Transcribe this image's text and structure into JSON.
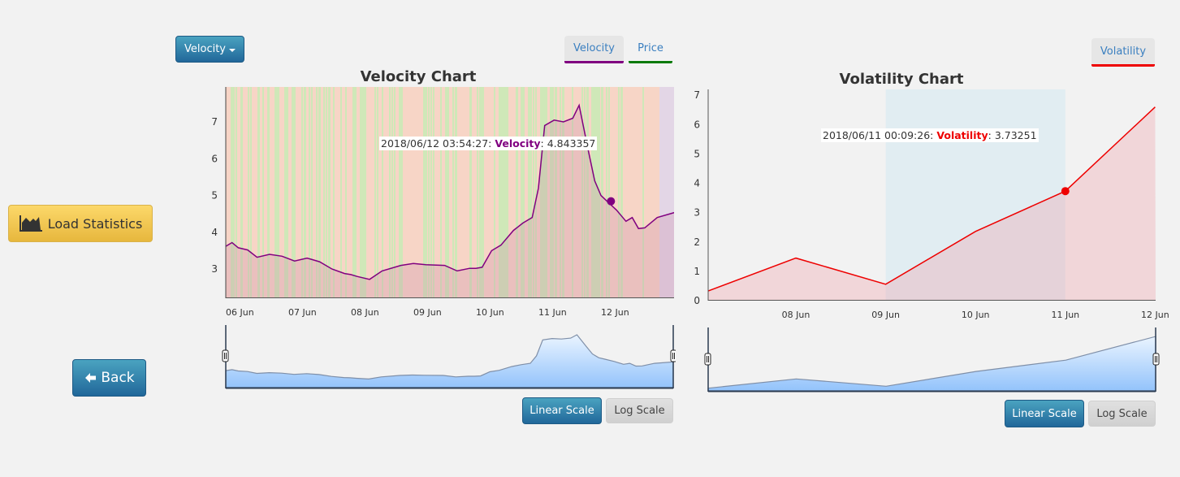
{
  "sidebar": {
    "load_statistics_label": "Load Statistics",
    "back_label": "Back"
  },
  "velocity_panel": {
    "dropdown_label": "Velocity",
    "legend": [
      {
        "label": "Velocity",
        "color": "#800080",
        "active": true
      },
      {
        "label": "Price",
        "color": "#0a7a0a",
        "active": false
      }
    ],
    "tooltip": {
      "timestamp": "2018/06/12 03:54:27:",
      "series": "Velocity",
      "sep": ":",
      "value": "4.843357"
    },
    "scale_buttons": {
      "linear": "Linear Scale",
      "log": "Log Scale"
    }
  },
  "volatility_panel": {
    "legend": [
      {
        "label": "Volatility",
        "color": "#ee0000",
        "active": true
      }
    ],
    "tooltip": {
      "timestamp": "2018/06/11 00:09:26:",
      "series": "Volatility",
      "sep": ":",
      "value": "3.73251"
    },
    "scale_buttons": {
      "linear": "Linear Scale",
      "log": "Log Scale"
    }
  },
  "chart_data": [
    {
      "type": "line",
      "title": "Velocity Chart",
      "xlabel": "",
      "ylabel": "",
      "x_ticks": [
        "06 Jun",
        "07 Jun",
        "08 Jun",
        "09 Jun",
        "10 Jun",
        "11 Jun",
        "12 Jun"
      ],
      "y_ticks": [
        3,
        4,
        5,
        6,
        7
      ],
      "xlim_days": [
        0,
        7.2
      ],
      "ylim": [
        2.23,
        7.95
      ],
      "line_color": "#800080",
      "series": [
        {
          "name": "Velocity",
          "x_days": [
            0,
            0.1,
            0.2,
            0.35,
            0.5,
            0.7,
            0.9,
            1.1,
            1.3,
            1.5,
            1.7,
            1.9,
            2.0,
            2.1,
            2.3,
            2.5,
            2.8,
            3.0,
            3.2,
            3.5,
            3.7,
            3.9,
            4.0,
            4.1,
            4.25,
            4.4,
            4.6,
            4.75,
            4.9,
            5.0,
            5.1,
            5.25,
            5.4,
            5.55,
            5.65,
            5.8,
            5.9,
            6.0,
            6.1,
            6.25,
            6.4,
            6.5,
            6.6,
            6.7,
            6.9,
            7.2
          ],
          "values": [
            3.62,
            3.72,
            3.58,
            3.52,
            3.32,
            3.4,
            3.35,
            3.22,
            3.3,
            3.2,
            3.0,
            2.88,
            2.85,
            2.8,
            2.72,
            2.95,
            3.1,
            3.15,
            3.12,
            3.1,
            2.95,
            3.02,
            3.02,
            3.05,
            3.5,
            3.65,
            4.05,
            4.25,
            4.4,
            5.2,
            6.9,
            7.05,
            7.0,
            7.1,
            7.45,
            6.2,
            5.4,
            5.0,
            4.84,
            4.6,
            4.3,
            4.4,
            4.1,
            4.12,
            4.4,
            4.55
          ]
        }
      ],
      "highlight": {
        "x_days": 6.16,
        "value": 4.843357
      }
    },
    {
      "type": "line",
      "title": "Volatility Chart",
      "xlabel": "",
      "ylabel": "",
      "x_ticks": [
        "08 Jun",
        "09 Jun",
        "10 Jun",
        "11 Jun",
        "12 Jun"
      ],
      "y_ticks": [
        0,
        1,
        2,
        3,
        4,
        5,
        6,
        7
      ],
      "xlim_days": [
        -0.98,
        4
      ],
      "ylim": [
        0,
        7.2
      ],
      "line_color": "#ee0000",
      "series": [
        {
          "name": "Volatility",
          "x_days": [
            -0.98,
            0,
            1,
            2,
            3,
            4
          ],
          "values": [
            0.33,
            1.45,
            0.56,
            2.36,
            3.73251,
            6.6
          ]
        }
      ],
      "highlight": {
        "x_days": 3,
        "value": 3.73251
      },
      "shaded_range_days": [
        1,
        3
      ]
    }
  ]
}
